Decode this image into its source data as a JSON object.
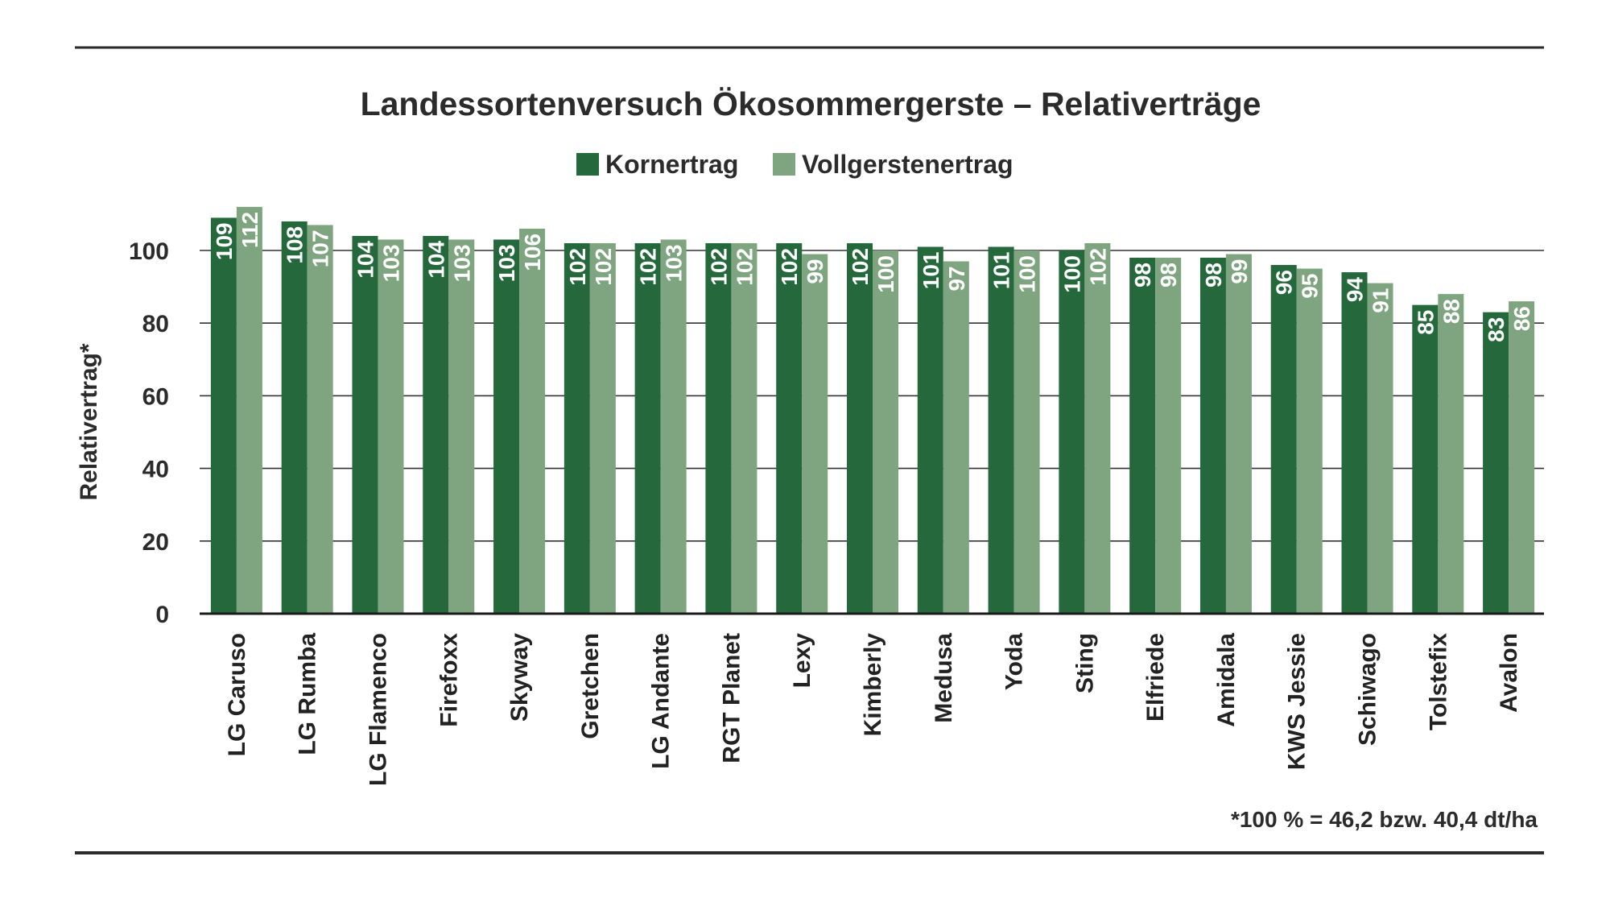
{
  "chart_data": {
    "type": "bar",
    "title": "Landessortenversuch Ökosommergerste – Relativerträge",
    "ylabel": "Relativertrag*",
    "xlabel": "",
    "ylim": [
      0,
      115
    ],
    "yticks": [
      0,
      20,
      40,
      60,
      80,
      100
    ],
    "grid": true,
    "legend_position": "top-center",
    "footnote": "*100 % = 46,2 bzw. 40,4 dt/ha",
    "categories": [
      "LG Caruso",
      "LG Rumba",
      "LG Flamenco",
      "Firefoxx",
      "Skyway",
      "Gretchen",
      "LG Andante",
      "RGT Planet",
      "Lexy",
      "Kimberly",
      "Medusa",
      "Yoda",
      "Sting",
      "Elfriede",
      "Amidala",
      "KWS Jessie",
      "Schiwago",
      "Tolstefix",
      "Avalon"
    ],
    "series": [
      {
        "name": "Kornertrag",
        "color": "#24683c",
        "values": [
          109,
          108,
          104,
          104,
          103,
          102,
          102,
          102,
          102,
          102,
          101,
          101,
          100,
          98,
          98,
          96,
          94,
          85,
          83
        ]
      },
      {
        "name": "Vollgerstenertrag",
        "color": "#7ea57f",
        "values": [
          112,
          107,
          103,
          103,
          106,
          102,
          103,
          102,
          99,
          100,
          97,
          100,
          102,
          98,
          99,
          95,
          91,
          88,
          86
        ]
      }
    ]
  }
}
